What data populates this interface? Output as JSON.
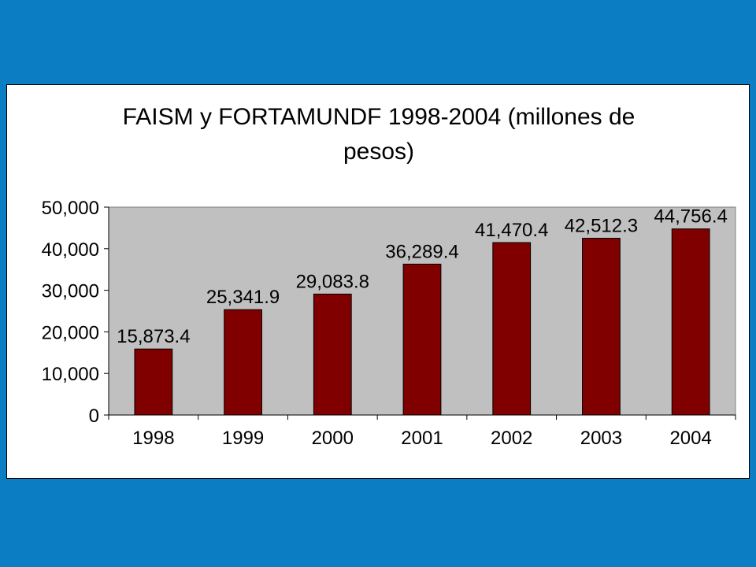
{
  "colors": {
    "slide_background": "#0B7EC3",
    "plot_area": "#C0C0C0",
    "bar_fill": "#800000",
    "bar_stroke": "#000000"
  },
  "chart_data": {
    "type": "bar",
    "title_lines": [
      "FAISM y FORTAMUNDF 1998-2004 (millones de",
      "pesos)"
    ],
    "categories": [
      "1998",
      "1999",
      "2000",
      "2001",
      "2002",
      "2003",
      "2004"
    ],
    "values": [
      15873.4,
      25341.9,
      29083.8,
      36289.4,
      41470.4,
      42512.3,
      44756.4
    ],
    "data_labels": [
      "15,873.4",
      "25,341.9",
      "29,083.8",
      "36,289.4",
      "41,470.4",
      "42,512.3",
      "44,756.4"
    ],
    "y_ticks": [
      0,
      10000,
      20000,
      30000,
      40000,
      50000
    ],
    "y_tick_labels": [
      "0",
      "10,000",
      "20,000",
      "30,000",
      "40,000",
      "50,000"
    ],
    "ylim": [
      0,
      50000
    ],
    "xlabel": "",
    "ylabel": "",
    "grid": false,
    "legend": "none"
  }
}
